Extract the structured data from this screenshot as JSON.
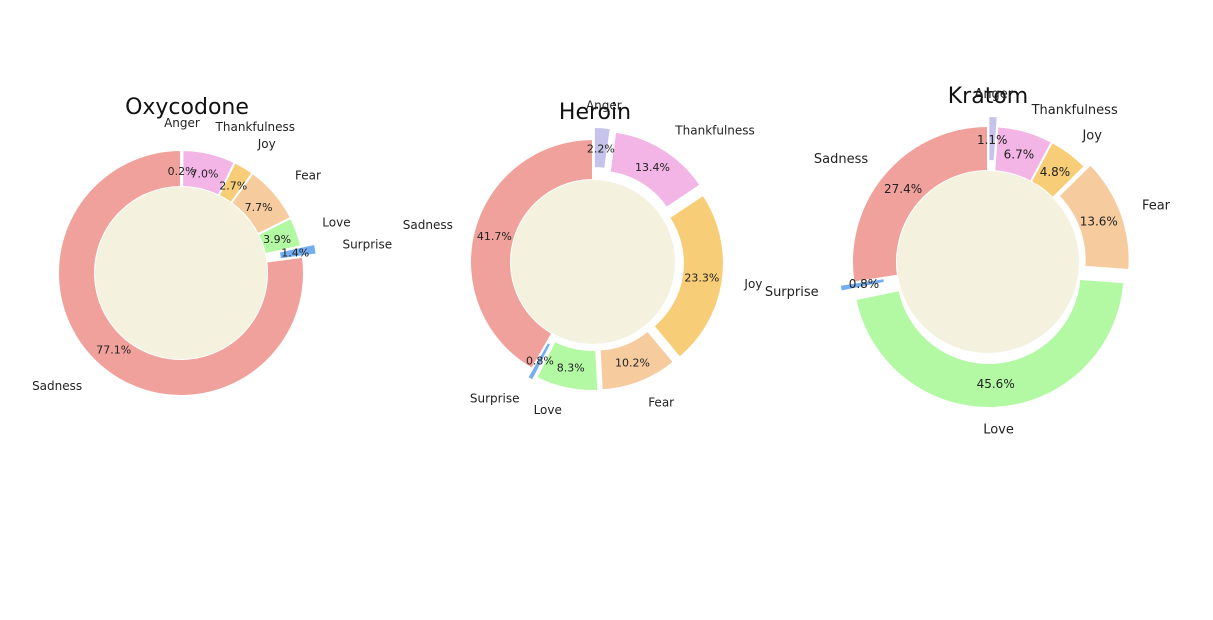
{
  "chart_data": [
    {
      "type": "pie",
      "title": "Oxycodone",
      "donut": true,
      "start_angle_deg": 90,
      "direction": "clockwise",
      "slices": [
        {
          "label": "Anger",
          "value": 0.2,
          "pct_label": "0.2%",
          "color": "#c5c3ec"
        },
        {
          "label": "Thankfulness",
          "value": 7.0,
          "pct_label": "7.0%",
          "color": "#f2b5e6"
        },
        {
          "label": "Joy",
          "value": 2.7,
          "pct_label": "2.7%",
          "color": "#f8cd78"
        },
        {
          "label": "Fear",
          "value": 7.7,
          "pct_label": "7.7%",
          "color": "#f6cc9f"
        },
        {
          "label": "Love",
          "value": 3.9,
          "pct_label": "3.9%",
          "color": "#b3f9a4"
        },
        {
          "label": "Surprise",
          "value": 1.4,
          "pct_label": "1.4%",
          "color": "#75aef0"
        },
        {
          "label": "Sadness",
          "value": 77.1,
          "pct_label": "77.1%",
          "color": "#f1a19c"
        }
      ]
    },
    {
      "type": "pie",
      "title": "Heroin",
      "donut": true,
      "start_angle_deg": 90,
      "direction": "clockwise",
      "slices": [
        {
          "label": "Anger",
          "value": 2.2,
          "pct_label": "2.2%",
          "color": "#c5c3ec"
        },
        {
          "label": "Thankfulness",
          "value": 13.4,
          "pct_label": "13.4%",
          "color": "#f2b5e6"
        },
        {
          "label": "Joy",
          "value": 23.3,
          "pct_label": "23.3%",
          "color": "#f8cd78"
        },
        {
          "label": "Fear",
          "value": 10.2,
          "pct_label": "10.2%",
          "color": "#f6cc9f"
        },
        {
          "label": "Love",
          "value": 8.3,
          "pct_label": "8.3%",
          "color": "#b3f9a4"
        },
        {
          "label": "Surprise",
          "value": 0.8,
          "pct_label": "0.8%",
          "color": "#75aef0"
        },
        {
          "label": "Sadness",
          "value": 41.7,
          "pct_label": "41.7%",
          "color": "#f1a19c"
        }
      ]
    },
    {
      "type": "pie",
      "title": "Kratom",
      "donut": true,
      "start_angle_deg": 90,
      "direction": "clockwise",
      "slices": [
        {
          "label": "Anger",
          "value": 1.1,
          "pct_label": "1.1%",
          "color": "#c5c3ec"
        },
        {
          "label": "Thankfulness",
          "value": 6.7,
          "pct_label": "6.7%",
          "color": "#f2b5e6"
        },
        {
          "label": "Joy",
          "value": 4.8,
          "pct_label": "4.8%",
          "color": "#f8cd78"
        },
        {
          "label": "Fear",
          "value": 13.6,
          "pct_label": "13.6%",
          "color": "#f6cc9f"
        },
        {
          "label": "Love",
          "value": 45.6,
          "pct_label": "45.6%",
          "color": "#b3f9a4"
        },
        {
          "label": "Surprise",
          "value": 0.8,
          "pct_label": "0.8%",
          "color": "#75aef0"
        },
        {
          "label": "Sadness",
          "value": 27.4,
          "pct_label": "27.4%",
          "color": "#f1a19c"
        }
      ]
    }
  ],
  "colors": {
    "center_fill": "#f4f2de",
    "background": "#ffffff",
    "separator": "#ffffff"
  }
}
